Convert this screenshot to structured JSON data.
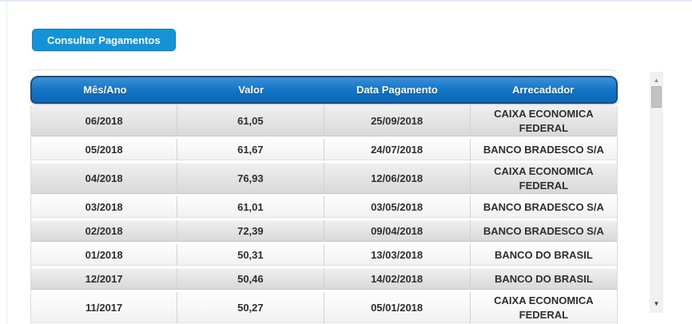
{
  "page": {
    "background_color": "#ffffff",
    "top_border_color": "#e3edf7"
  },
  "button": {
    "label": "Consultar Pagamentos",
    "background_color": "#1494d6",
    "text_color": "#ffffff"
  },
  "table": {
    "columns": [
      "Mês/Ano",
      "Valor",
      "Data Pagamento",
      "Arrecadador"
    ],
    "cell_keys": [
      "mes_ano",
      "valor",
      "data_pagamento",
      "arrecadador"
    ],
    "rows": [
      {
        "mes_ano": "06/2018",
        "valor": "61,05",
        "data_pagamento": "25/09/2018",
        "arrecadador": "CAIXA ECONOMICA FEDERAL"
      },
      {
        "mes_ano": "05/2018",
        "valor": "61,67",
        "data_pagamento": "24/07/2018",
        "arrecadador": "BANCO BRADESCO S/A"
      },
      {
        "mes_ano": "04/2018",
        "valor": "76,93",
        "data_pagamento": "12/06/2018",
        "arrecadador": "CAIXA ECONOMICA FEDERAL"
      },
      {
        "mes_ano": "03/2018",
        "valor": "61,01",
        "data_pagamento": "03/05/2018",
        "arrecadador": "BANCO BRADESCO S/A"
      },
      {
        "mes_ano": "02/2018",
        "valor": "72,39",
        "data_pagamento": "09/04/2018",
        "arrecadador": "BANCO BRADESCO S/A"
      },
      {
        "mes_ano": "01/2018",
        "valor": "50,31",
        "data_pagamento": "13/03/2018",
        "arrecadador": "BANCO DO BRASIL"
      },
      {
        "mes_ano": "12/2017",
        "valor": "50,46",
        "data_pagamento": "14/02/2018",
        "arrecadador": "BANCO DO BRASIL"
      },
      {
        "mes_ano": "11/2017",
        "valor": "50,27",
        "data_pagamento": "05/01/2018",
        "arrecadador": "CAIXA ECONOMICA FEDERAL"
      }
    ],
    "header_background_color": "#1173c4",
    "header_border_color": "#1c4c86",
    "header_text_color": "#ffffff",
    "row_gray_color": "#e3e3e3",
    "row_white_color": "#f8f8f8",
    "cell_text_color": "#2e2e2e"
  },
  "scrollbar": {
    "up_icon": "▲",
    "down_icon": "▼",
    "track_color": "#f1f1f1",
    "thumb_color": "#c2c2c2"
  }
}
